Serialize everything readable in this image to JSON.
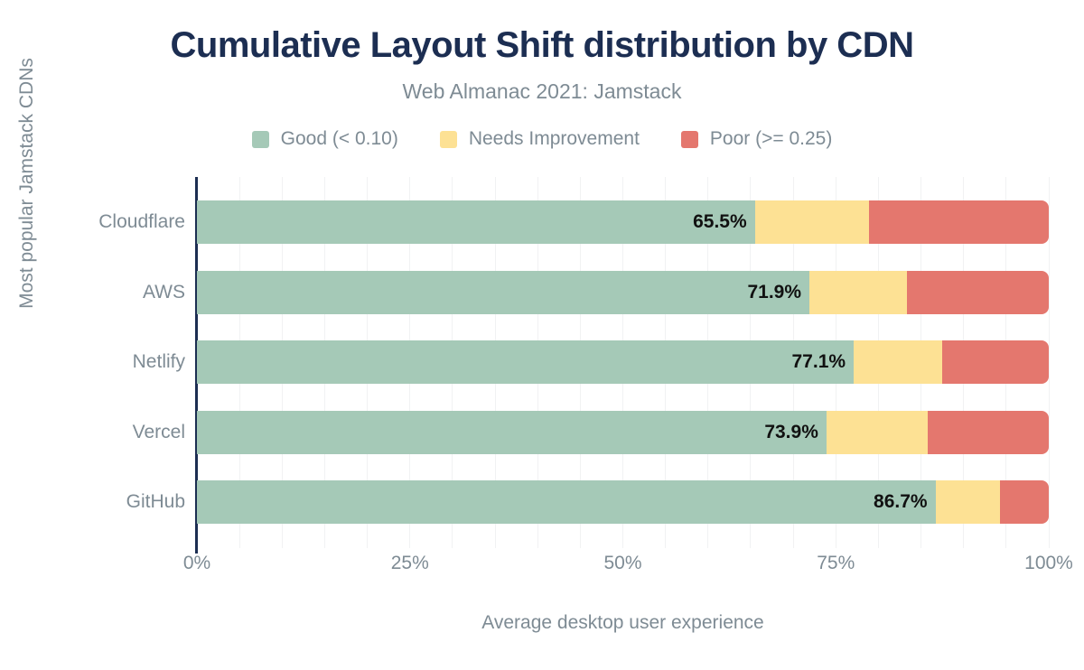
{
  "title": "Cumulative Layout Shift distribution by CDN",
  "subtitle": "Web Almanac 2021: Jamstack",
  "legend": [
    {
      "label": "Good (< 0.10)",
      "color": "#a5c9b7"
    },
    {
      "label": "Needs Improvement",
      "color": "#fde194"
    },
    {
      "label": "Poor (>= 0.25)",
      "color": "#e4776e"
    }
  ],
  "colors": {
    "title": "#1c2e52",
    "muted_text": "#7e8b94",
    "good": "#a5c9b7",
    "needs_improvement": "#fde194",
    "poor": "#e4776e",
    "gridline": "#f1f2f3",
    "axis_line": "#1c2e52",
    "bar_value_text": "#111111"
  },
  "chart_data": {
    "type": "bar",
    "orientation": "horizontal",
    "stacked": true,
    "title": "Cumulative Layout Shift distribution by CDN",
    "subtitle": "Web Almanac 2021: Jamstack",
    "categories": [
      "Cloudflare",
      "AWS",
      "Netlify",
      "Vercel",
      "GitHub"
    ],
    "series": [
      {
        "name": "Good (< 0.10)",
        "color": "#a5c9b7",
        "values": [
          65.5,
          71.9,
          77.1,
          73.9,
          86.7
        ]
      },
      {
        "name": "Needs Improvement",
        "color": "#fde194",
        "values": [
          13.4,
          11.5,
          10.4,
          11.9,
          7.6
        ]
      },
      {
        "name": "Poor (>= 0.25)",
        "color": "#e4776e",
        "values": [
          21.1,
          16.6,
          12.5,
          14.2,
          5.7
        ]
      }
    ],
    "bar_labels": [
      "65.5%",
      "71.9%",
      "77.1%",
      "73.9%",
      "86.7%"
    ],
    "xlabel": "Average desktop user experience",
    "ylabel": "Most popular Jamstack CDNs",
    "xlim": [
      0,
      100
    ],
    "x_ticks": [
      {
        "value": 0,
        "label": "0%"
      },
      {
        "value": 25,
        "label": "25%"
      },
      {
        "value": 50,
        "label": "50%"
      },
      {
        "value": 75,
        "label": "75%"
      },
      {
        "value": 100,
        "label": "100%"
      }
    ],
    "grid": {
      "minor_step": 5,
      "visible": true
    },
    "legend_position": "top"
  }
}
